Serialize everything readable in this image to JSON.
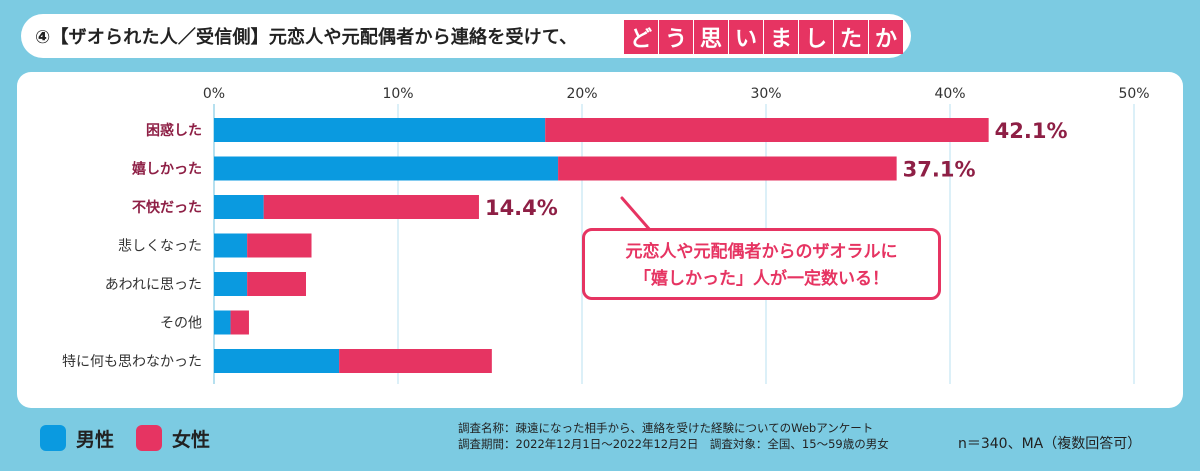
{
  "title": {
    "prefix": "④【ザオられた人／受信側】元恋人や元配偶者から連絡を受けて、",
    "highlight": [
      "ど",
      "う",
      "思",
      "い",
      "ま",
      "し",
      "た",
      "か"
    ]
  },
  "callout": {
    "line1": "元恋人や元配偶者からのザオラルに",
    "line2": "「嬉しかった」人が一定数いる！"
  },
  "legend": [
    {
      "name": "男性",
      "color": "#0a9ae0"
    },
    {
      "name": "女性",
      "color": "#e63462"
    }
  ],
  "notes": {
    "survey_name": "調査名称：疎遠になった相手から、連絡を受けた経験についてのWebアンケート",
    "survey_period": "調査期間：2022年12月1日～2022年12月2日　調査対象：全国、15～59歳の男女",
    "sample": "n＝340、MA（複数回答可）"
  },
  "chart_data": {
    "type": "bar",
    "orientation": "horizontal",
    "stacked": true,
    "categories": [
      "困惑した",
      "嬉しかった",
      "不快だった",
      "悲しくなった",
      "あわれに思った",
      "その他",
      "特に何も思わなかった"
    ],
    "highlighted_categories": [
      "困惑した",
      "嬉しかった",
      "不快だった"
    ],
    "series": [
      {
        "name": "男性",
        "color": "#0a9ae0",
        "values": [
          18.0,
          18.7,
          2.7,
          1.8,
          1.8,
          0.9,
          6.8
        ]
      },
      {
        "name": "女性",
        "color": "#e63462",
        "values": [
          24.1,
          18.4,
          11.7,
          3.5,
          3.2,
          1.0,
          8.3
        ]
      }
    ],
    "total_labels": [
      "42.1%",
      "37.1%",
      "14.4%",
      "",
      "",
      "",
      ""
    ],
    "x_ticks": [
      "0%",
      "10%",
      "20%",
      "30%",
      "40%",
      "50%"
    ],
    "xlim": [
      0,
      50
    ],
    "grid": true
  }
}
